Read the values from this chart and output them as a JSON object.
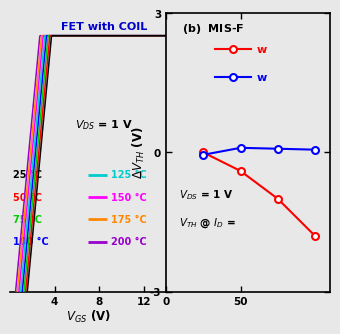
{
  "left_panel": {
    "title": "FET with COIL",
    "title_color": "#0000CC",
    "annotation": "V_{DS} = 1 V",
    "xlim": [
      0,
      14
    ],
    "ylim": [
      0.0001,
      2.0
    ],
    "xticks": [
      4,
      8,
      12
    ],
    "temperatures": [
      25,
      50,
      75,
      100,
      125,
      150,
      175,
      200
    ],
    "colors": [
      "#000000",
      "#FF0000",
      "#00CC00",
      "#0000FF",
      "#00CCCC",
      "#FF00FF",
      "#FF8800",
      "#9900CC"
    ],
    "vth_base": 1.0,
    "vth_step": -0.15,
    "legend_temps_left": [
      "25 °C",
      "50 °C",
      "75 °C",
      "100 °C"
    ],
    "legend_colors_left": [
      "#000000",
      "#FF0000",
      "#00CC00",
      "#0000FF"
    ],
    "legend_temps_right": [
      "125 °C",
      "150 °C",
      "175 °C",
      "200 °C"
    ],
    "legend_colors_right": [
      "#00CCCC",
      "#FF00FF",
      "#FF8800",
      "#9900CC"
    ]
  },
  "right_panel": {
    "ylabel": "ΔV_{TH} (V)",
    "xlim": [
      0,
      110
    ],
    "ylim": [
      -3,
      3
    ],
    "xticks": [
      0,
      50
    ],
    "yticks": [
      -3,
      0,
      3
    ],
    "annotation1": "V_{DS} = 1 V",
    "annotation2": "V_{TH} @ I_{D} =",
    "red_series": {
      "label": "w",
      "color": "#FF0000",
      "x": [
        25,
        50,
        75,
        100
      ],
      "y": [
        0.0,
        -0.4,
        -1.0,
        -1.8
      ]
    },
    "blue_series": {
      "label": "w",
      "color": "#0000FF",
      "x": [
        25,
        50,
        75,
        100
      ],
      "y": [
        -0.05,
        0.1,
        0.08,
        0.06
      ]
    }
  },
  "bg_color": "#E8E8E8",
  "plot_bg": "#E8E8E8"
}
